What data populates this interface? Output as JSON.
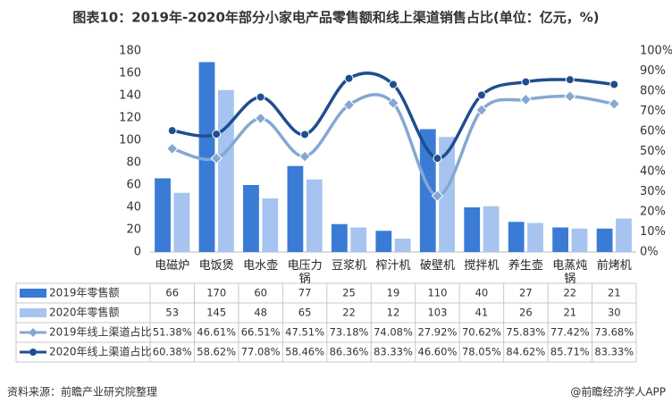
{
  "chart_data": {
    "type": "bar-line-table",
    "title": "图表10：2019年-2020年部分小家电产品零售额和线上渠道销售占比(单位：亿元，%)",
    "categories": [
      "电磁炉",
      "电饭煲",
      "电水壶",
      "电压力锅",
      "豆浆机",
      "榨汁机",
      "破壁机",
      "搅拌机",
      "养生壶",
      "电蒸炖锅",
      "前烤机"
    ],
    "series": [
      {
        "name": "2019年零售额",
        "kind": "bar",
        "color": "#3a7bd5",
        "values": [
          66,
          170,
          60,
          77,
          25,
          19,
          110,
          40,
          27,
          22,
          21
        ]
      },
      {
        "name": "2020年零售额",
        "kind": "bar",
        "color": "#a6c4ef",
        "values": [
          53,
          145,
          48,
          65,
          22,
          12,
          103,
          41,
          26,
          21,
          30
        ]
      },
      {
        "name": "2019年线上渠道占比",
        "kind": "line",
        "marker": "diamond",
        "axis": "y2",
        "color": "#84a8d2",
        "values": [
          51.38,
          46.61,
          66.51,
          47.51,
          73.18,
          74.08,
          27.92,
          70.62,
          75.83,
          77.42,
          73.68
        ],
        "value_labels": [
          "51.38%",
          "46.61%",
          "66.51%",
          "47.51%",
          "73.18%",
          "74.08%",
          "27.92%",
          "70.62%",
          "75.83%",
          "77.42%",
          "73.68%"
        ]
      },
      {
        "name": "2020年线上渠道占比",
        "kind": "line",
        "marker": "circle",
        "axis": "y2",
        "color": "#1f4e8f",
        "values": [
          60.38,
          58.62,
          77.08,
          58.46,
          86.36,
          83.33,
          46.6,
          78.05,
          84.62,
          85.71,
          83.33
        ],
        "value_labels": [
          "60.38%",
          "58.62%",
          "77.08%",
          "58.46%",
          "86.36%",
          "83.33%",
          "46.60%",
          "78.05%",
          "84.62%",
          "85.71%",
          "83.33%"
        ]
      }
    ],
    "ylim": [
      0,
      180
    ],
    "yticks": [
      0,
      20,
      40,
      60,
      80,
      100,
      120,
      140,
      160,
      180
    ],
    "y2lim": [
      0,
      100
    ],
    "y2ticks": [
      {
        "value": 0,
        "label": "0%"
      },
      {
        "value": 10,
        "label": "10%"
      },
      {
        "value": 20,
        "label": "20%"
      },
      {
        "value": 30,
        "label": "30%"
      },
      {
        "value": 40,
        "label": "40%"
      },
      {
        "value": 50,
        "label": "50%"
      },
      {
        "value": 60,
        "label": "60%"
      },
      {
        "value": 70,
        "label": "70%"
      },
      {
        "value": 80,
        "label": "80%"
      },
      {
        "value": 90,
        "label": "90%"
      },
      {
        "value": 100,
        "label": "100%"
      }
    ],
    "source": "资料来源：前瞻产业研究院整理",
    "credit": "@前瞻经济学人APP"
  }
}
